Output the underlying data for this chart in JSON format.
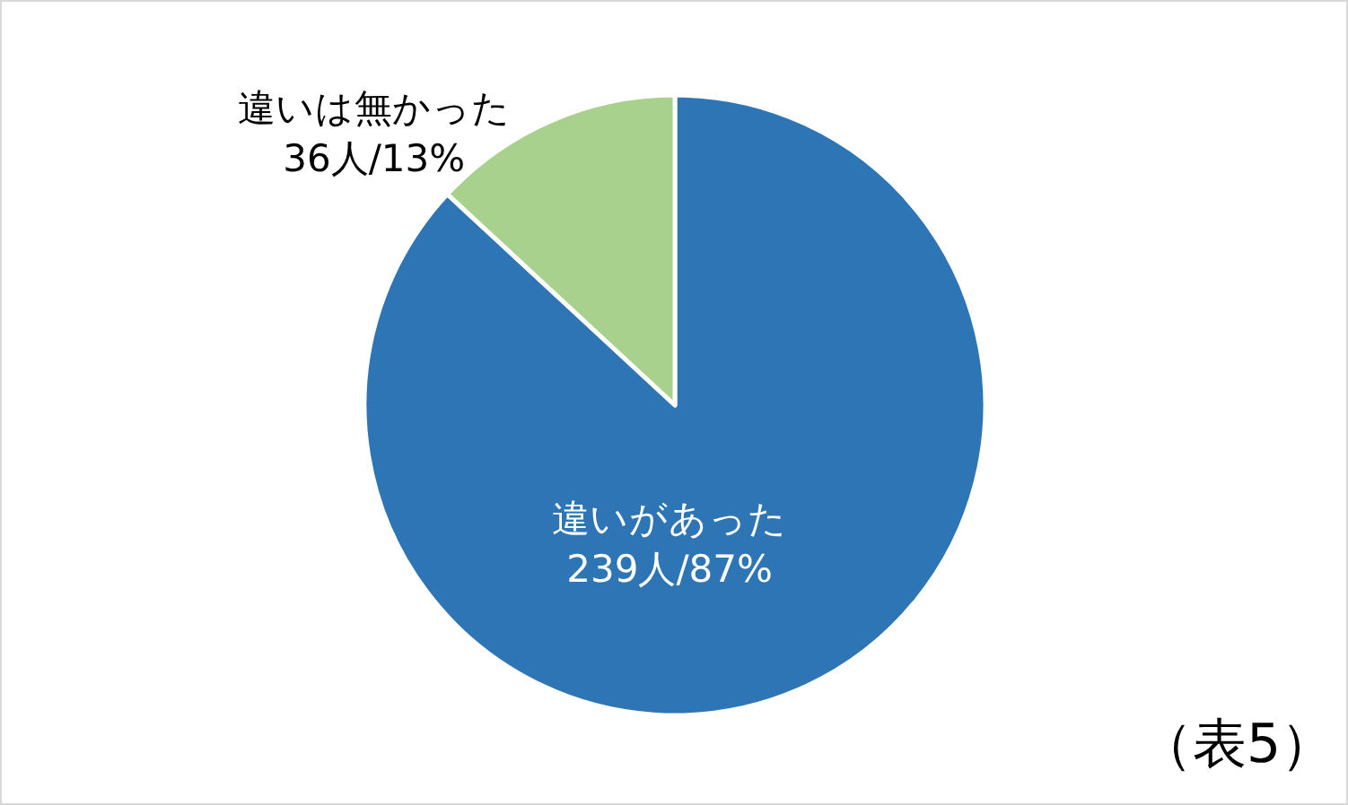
{
  "chart_data": {
    "type": "pie",
    "categories": [
      "違いがあった",
      "違いは無かった"
    ],
    "values": [
      239,
      36
    ],
    "colors": [
      "#2e75b6",
      "#a9d18e"
    ],
    "value_labels": [
      "239人/87%",
      "36人/13%"
    ],
    "annotations": [
      "（表5）"
    ]
  }
}
